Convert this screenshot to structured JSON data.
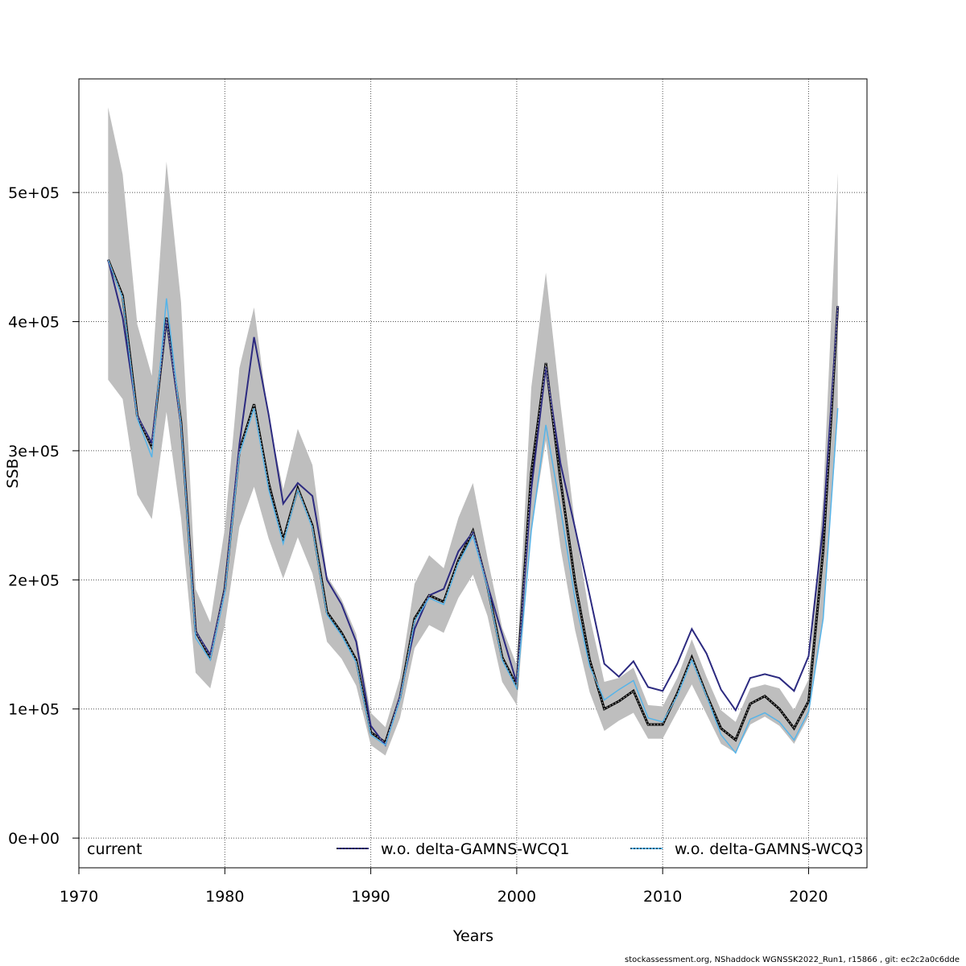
{
  "chart_data": {
    "type": "line",
    "title": "",
    "xlabel": "Years",
    "ylabel": "SSB",
    "xlim": [
      1970,
      2024
    ],
    "ylim": [
      -23000,
      588000
    ],
    "x_ticks": [
      1970,
      1980,
      1990,
      2000,
      2010,
      2020
    ],
    "x_tick_labels": [
      "1970",
      "1980",
      "1990",
      "2000",
      "2010",
      "2020"
    ],
    "y_ticks": [
      0,
      100000,
      200000,
      300000,
      400000,
      500000
    ],
    "y_tick_labels": [
      "0e+00",
      "1e+05",
      "2e+05",
      "3e+05",
      "4e+05",
      "5e+05"
    ],
    "grid": true,
    "legend_position": "bottom",
    "x": [
      1972,
      1973,
      1974,
      1975,
      1976,
      1977,
      1978,
      1979,
      1980,
      1981,
      1982,
      1983,
      1984,
      1985,
      1986,
      1987,
      1988,
      1989,
      1990,
      1991,
      1992,
      1993,
      1994,
      1995,
      1996,
      1997,
      1998,
      1999,
      2000,
      2001,
      2002,
      2003,
      2004,
      2005,
      2006,
      2007,
      2008,
      2009,
      2010,
      2011,
      2012,
      2013,
      2014,
      2015,
      2016,
      2017,
      2018,
      2019,
      2020,
      2021,
      2022
    ],
    "band": {
      "color": "#bebebe",
      "lower": [
        355000,
        340000,
        266000,
        247000,
        330000,
        248000,
        128000,
        116000,
        165000,
        241000,
        272000,
        232000,
        201000,
        233000,
        205000,
        152000,
        139000,
        118000,
        72000,
        64000,
        93000,
        147000,
        165000,
        159000,
        186000,
        204000,
        172000,
        121000,
        103000,
        238000,
        308000,
        225000,
        161000,
        113000,
        83000,
        91000,
        97000,
        77000,
        77000,
        98000,
        119000,
        96000,
        73000,
        66000,
        88000,
        94000,
        87000,
        73000,
        94000,
        170000,
        326000
      ],
      "upper": [
        566000,
        514000,
        398000,
        358000,
        524000,
        415000,
        193000,
        167000,
        240000,
        364000,
        411000,
        325000,
        270000,
        317000,
        289000,
        203000,
        185000,
        158000,
        97000,
        86000,
        124000,
        197000,
        219000,
        209000,
        248000,
        275000,
        217000,
        163000,
        134000,
        349000,
        438000,
        336000,
        242000,
        172000,
        121000,
        124000,
        132000,
        103000,
        102000,
        124000,
        154000,
        125000,
        99000,
        90000,
        116000,
        119000,
        116000,
        99000,
        123000,
        264000,
        515000
      ]
    },
    "series": [
      {
        "name": "current",
        "color": "#000000",
        "dash": "",
        "values": [
          448000,
          420000,
          327000,
          303000,
          403000,
          322000,
          160000,
          140000,
          193000,
          300000,
          336000,
          275000,
          231000,
          271000,
          242000,
          175000,
          159000,
          138000,
          82000,
          74000,
          109000,
          170000,
          188000,
          183000,
          215000,
          238000,
          195000,
          140000,
          118000,
          283000,
          368000,
          277000,
          198000,
          138000,
          100000,
          106000,
          114000,
          88000,
          88000,
          112000,
          140000,
          111000,
          85000,
          76000,
          104000,
          110000,
          100000,
          85000,
          106000,
          223000,
          412000
        ]
      },
      {
        "name": "w.o. delta-GAMNS-WCQ1",
        "color": "#2c2a80",
        "dash": "",
        "values": [
          448000,
          403000,
          327000,
          306000,
          402000,
          320000,
          160000,
          142000,
          193000,
          305000,
          388000,
          328000,
          259000,
          275000,
          265000,
          200000,
          181000,
          152000,
          87000,
          72000,
          110000,
          162000,
          188000,
          193000,
          222000,
          237000,
          196000,
          158000,
          120000,
          270000,
          365000,
          290000,
          240000,
          188000,
          135000,
          125000,
          137000,
          117000,
          114000,
          135000,
          162000,
          143000,
          115000,
          99000,
          124000,
          127000,
          124000,
          114000,
          141000,
          242000,
          412000
        ]
      },
      {
        "name": "w.o. delta-GAMNS-WCQ3",
        "color": "#56b4e9",
        "dash": "4,2",
        "values": [
          448000,
          418000,
          325000,
          295000,
          418000,
          320000,
          155000,
          138000,
          190000,
          297000,
          333000,
          270000,
          228000,
          270000,
          240000,
          173000,
          157000,
          136000,
          80000,
          72000,
          107000,
          168000,
          186000,
          181000,
          213000,
          234000,
          194000,
          138000,
          116000,
          238000,
          320000,
          255000,
          185000,
          133000,
          107000,
          115000,
          122000,
          93000,
          90000,
          110000,
          138000,
          110000,
          80000,
          66000,
          92000,
          97000,
          90000,
          76000,
          98000,
          170000,
          333000
        ]
      }
    ]
  },
  "footer": "stockassessment.org, NShaddock  WGNSSK2022_Run1, r15866 , git: ec2c2a0c6dde"
}
